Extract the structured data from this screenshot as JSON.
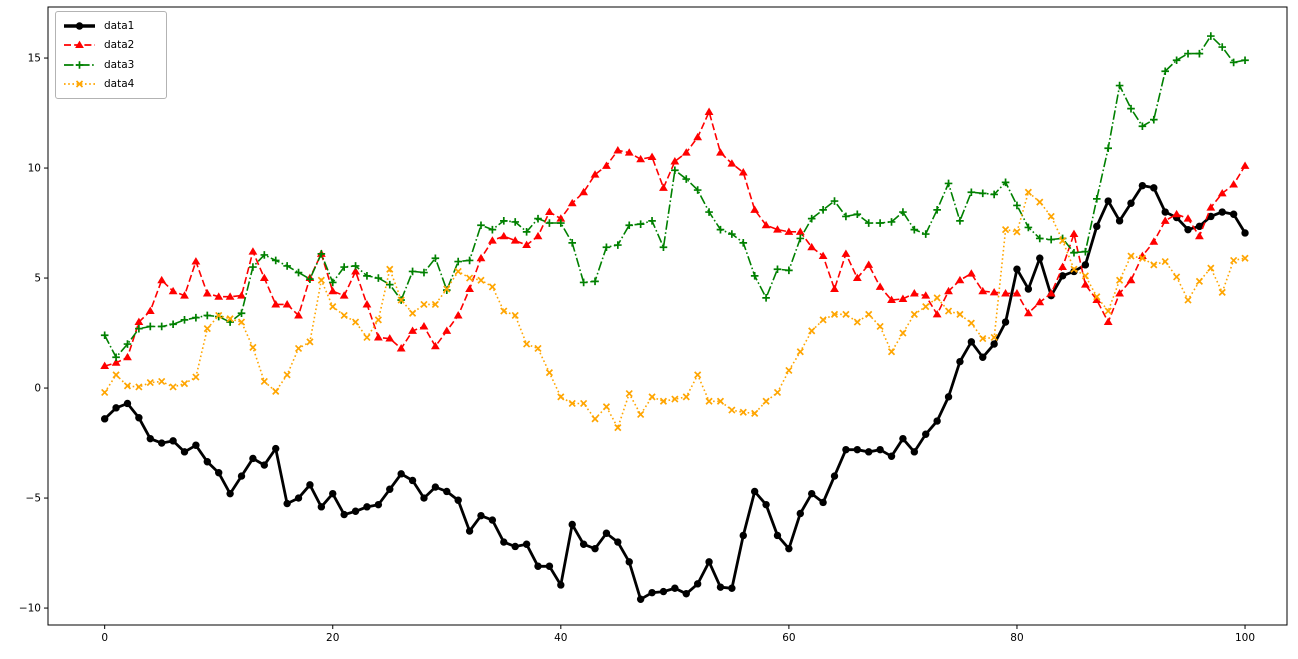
{
  "chart_data": {
    "type": "line",
    "title": "",
    "xlabel": "",
    "ylabel": "",
    "grid": false,
    "legend_position": "upper-left",
    "x_ticks": [
      0,
      20,
      40,
      60,
      80,
      100
    ],
    "y_ticks": [
      -10,
      -5,
      0,
      5,
      10,
      15
    ],
    "xlim": [
      -4.97,
      103.68
    ],
    "ylim": [
      -10.77,
      17.32
    ],
    "x": [
      0,
      1,
      2,
      3,
      4,
      5,
      6,
      7,
      8,
      9,
      10,
      11,
      12,
      13,
      14,
      15,
      16,
      17,
      18,
      19,
      20,
      21,
      22,
      23,
      24,
      25,
      26,
      27,
      28,
      29,
      30,
      31,
      32,
      33,
      34,
      35,
      36,
      37,
      38,
      39,
      40,
      41,
      42,
      43,
      44,
      45,
      46,
      47,
      48,
      49,
      50,
      51,
      52,
      53,
      54,
      55,
      56,
      57,
      58,
      59,
      60,
      61,
      62,
      63,
      64,
      65,
      66,
      67,
      68,
      69,
      70,
      71,
      72,
      73,
      74,
      75,
      76,
      77,
      78,
      79,
      80,
      81,
      82,
      83,
      84,
      85,
      86,
      87,
      88,
      89,
      90,
      91,
      92,
      93,
      94,
      95,
      96,
      97,
      98,
      99,
      100
    ],
    "series": [
      {
        "name": "data1",
        "color": "#000000",
        "linestyle": "solid",
        "marker": "circle",
        "line_width": 2.8,
        "values": [
          -1.4,
          -0.9,
          -0.7,
          -1.35,
          -2.3,
          -2.5,
          -2.4,
          -2.9,
          -2.6,
          -3.35,
          -3.85,
          -4.8,
          -4.0,
          -3.2,
          -3.5,
          -2.75,
          -5.25,
          -5.0,
          -4.4,
          -5.4,
          -4.8,
          -5.75,
          -5.6,
          -5.4,
          -5.3,
          -4.6,
          -3.9,
          -4.2,
          -5.0,
          -4.5,
          -4.7,
          -5.1,
          -6.5,
          -5.8,
          -6.0,
          -7.0,
          -7.2,
          -7.1,
          -8.1,
          -8.1,
          -8.95,
          -6.2,
          -7.1,
          -7.3,
          -6.6,
          -7.0,
          -7.9,
          -9.6,
          -9.3,
          -9.25,
          -9.1,
          -9.35,
          -8.9,
          -7.9,
          -9.05,
          -9.1,
          -6.7,
          -4.7,
          -5.3,
          -6.7,
          -7.3,
          -5.7,
          -4.8,
          -5.2,
          -4.0,
          -2.8,
          -2.8,
          -2.9,
          -2.8,
          -3.1,
          -2.3,
          -2.9,
          -2.1,
          -1.5,
          -0.4,
          1.2,
          2.1,
          1.4,
          2.0,
          3.0,
          5.4,
          4.5,
          5.9,
          4.2,
          5.1,
          5.3,
          5.6,
          7.35,
          8.5,
          7.6,
          8.4,
          9.2,
          9.1,
          8.0,
          7.75,
          7.2,
          7.35,
          7.8,
          8.0,
          7.9,
          7.05
        ]
      },
      {
        "name": "data2",
        "color": "#ff0000",
        "linestyle": "dashed",
        "marker": "triangle",
        "line_width": 1.6,
        "values": [
          1.0,
          1.15,
          1.4,
          3.0,
          3.5,
          4.9,
          4.4,
          4.2,
          5.75,
          4.3,
          4.15,
          4.15,
          4.2,
          6.2,
          5.0,
          3.8,
          3.8,
          3.3,
          5.0,
          6.1,
          4.4,
          4.2,
          5.3,
          3.8,
          2.3,
          2.25,
          1.8,
          2.6,
          2.8,
          1.9,
          2.6,
          3.3,
          4.5,
          5.9,
          6.7,
          6.9,
          6.7,
          6.5,
          6.9,
          8.0,
          7.7,
          8.4,
          8.9,
          9.7,
          10.1,
          10.8,
          10.7,
          10.4,
          10.5,
          9.1,
          10.3,
          10.7,
          11.4,
          12.55,
          10.7,
          10.2,
          9.8,
          8.1,
          7.4,
          7.2,
          7.1,
          7.1,
          6.4,
          6.0,
          4.5,
          6.1,
          5.0,
          5.6,
          4.6,
          4.0,
          4.05,
          4.3,
          4.2,
          3.35,
          4.4,
          4.9,
          5.2,
          4.4,
          4.35,
          4.3,
          4.3,
          3.4,
          3.9,
          4.3,
          5.5,
          7.0,
          4.7,
          4.0,
          3.0,
          4.3,
          4.9,
          6.0,
          6.65,
          7.6,
          7.9,
          7.7,
          6.9,
          8.2,
          8.85,
          9.25,
          10.1
        ]
      },
      {
        "name": "data3",
        "color": "#008000",
        "linestyle": "dashdot",
        "marker": "plus",
        "line_width": 1.6,
        "values": [
          2.4,
          1.4,
          2.0,
          2.7,
          2.8,
          2.8,
          2.9,
          3.1,
          3.2,
          3.3,
          3.25,
          3.0,
          3.4,
          5.5,
          6.05,
          5.8,
          5.55,
          5.25,
          4.95,
          6.1,
          4.8,
          5.5,
          5.55,
          5.1,
          5.0,
          4.7,
          4.0,
          5.3,
          5.25,
          5.9,
          4.45,
          5.75,
          5.8,
          7.4,
          7.2,
          7.6,
          7.55,
          7.1,
          7.7,
          7.5,
          7.5,
          6.6,
          4.8,
          4.85,
          6.4,
          6.5,
          7.4,
          7.45,
          7.6,
          6.4,
          9.9,
          9.5,
          9.0,
          8.0,
          7.2,
          7.0,
          6.6,
          5.1,
          4.1,
          5.4,
          5.35,
          6.8,
          7.7,
          8.1,
          8.5,
          7.8,
          7.9,
          7.5,
          7.5,
          7.55,
          8.0,
          7.2,
          7.0,
          8.1,
          9.3,
          7.6,
          8.9,
          8.85,
          8.8,
          9.35,
          8.3,
          7.3,
          6.8,
          6.75,
          6.8,
          6.15,
          6.2,
          8.6,
          10.9,
          13.75,
          12.7,
          11.9,
          12.2,
          14.4,
          14.9,
          15.2,
          15.2,
          16.0,
          15.5,
          14.8,
          14.9
        ]
      },
      {
        "name": "data4",
        "color": "#ffa500",
        "linestyle": "dotted",
        "marker": "x",
        "line_width": 1.6,
        "values": [
          -0.2,
          0.6,
          0.1,
          0.05,
          0.25,
          0.3,
          0.05,
          0.2,
          0.5,
          2.7,
          3.3,
          3.15,
          3.0,
          1.85,
          0.3,
          -0.15,
          0.6,
          1.8,
          2.1,
          4.9,
          3.7,
          3.3,
          3.0,
          2.3,
          3.1,
          5.4,
          4.0,
          3.4,
          3.8,
          3.8,
          4.5,
          5.3,
          5.0,
          4.9,
          4.6,
          3.5,
          3.3,
          2.0,
          1.8,
          0.7,
          -0.4,
          -0.7,
          -0.7,
          -1.4,
          -0.85,
          -1.8,
          -0.25,
          -1.2,
          -0.4,
          -0.6,
          -0.5,
          -0.4,
          0.6,
          -0.6,
          -0.6,
          -1.0,
          -1.1,
          -1.15,
          -0.6,
          -0.2,
          0.8,
          1.65,
          2.6,
          3.1,
          3.35,
          3.35,
          3.0,
          3.35,
          2.8,
          1.65,
          2.5,
          3.35,
          3.7,
          4.1,
          3.5,
          3.35,
          2.95,
          2.25,
          2.3,
          7.2,
          7.1,
          8.9,
          8.45,
          7.8,
          6.7,
          5.4,
          5.1,
          4.15,
          3.5,
          4.9,
          6.0,
          5.9,
          5.6,
          5.75,
          5.05,
          4.0,
          4.85,
          5.45,
          4.35,
          5.8,
          5.9
        ]
      }
    ]
  },
  "legend": {
    "items": [
      {
        "label": "data1"
      },
      {
        "label": "data2"
      },
      {
        "label": "data3"
      },
      {
        "label": "data4"
      }
    ]
  }
}
